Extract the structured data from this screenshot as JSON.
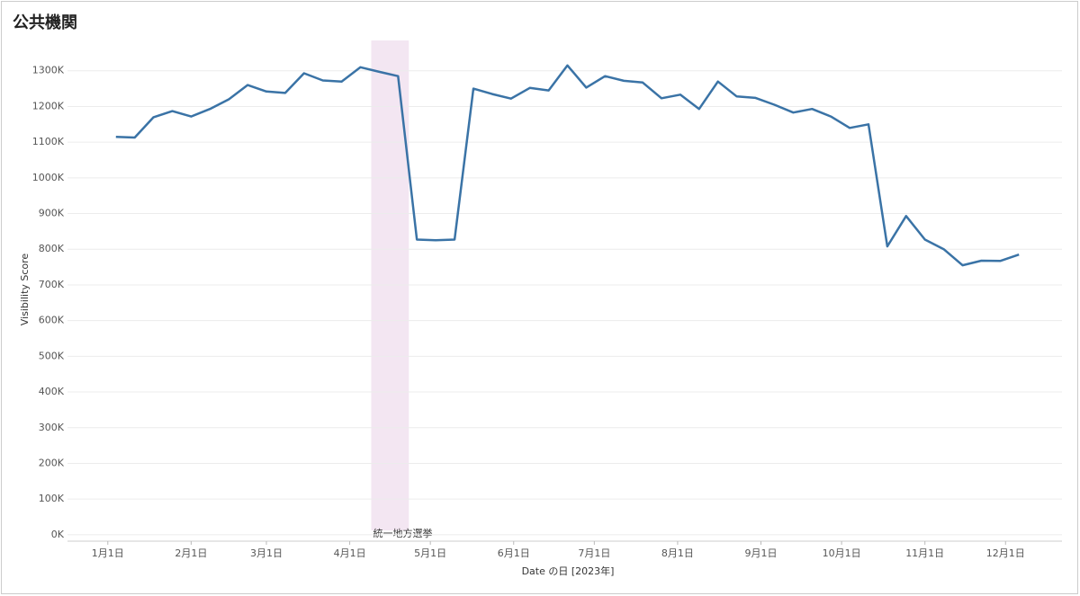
{
  "chart_data": {
    "type": "line",
    "title": "公共機関",
    "x_label": "Date の日 [2023年]",
    "y_label": "Visibility Score",
    "x": [
      "2023-01-04",
      "2023-01-11",
      "2023-01-18",
      "2023-01-25",
      "2023-02-01",
      "2023-02-08",
      "2023-02-15",
      "2023-02-22",
      "2023-03-01",
      "2023-03-08",
      "2023-03-15",
      "2023-03-22",
      "2023-03-29",
      "2023-04-05",
      "2023-04-12",
      "2023-04-19",
      "2023-04-26",
      "2023-05-03",
      "2023-05-10",
      "2023-05-17",
      "2023-05-24",
      "2023-05-31",
      "2023-06-07",
      "2023-06-14",
      "2023-06-21",
      "2023-06-28",
      "2023-07-05",
      "2023-07-12",
      "2023-07-19",
      "2023-07-26",
      "2023-08-02",
      "2023-08-09",
      "2023-08-16",
      "2023-08-23",
      "2023-08-30",
      "2023-09-06",
      "2023-09-13",
      "2023-09-20",
      "2023-09-27",
      "2023-10-04",
      "2023-10-11",
      "2023-10-18",
      "2023-10-25",
      "2023-11-01",
      "2023-11-08",
      "2023-11-15",
      "2023-11-22",
      "2023-11-29",
      "2023-12-06"
    ],
    "series": [
      {
        "name": "Visibility Score",
        "color": "#3a73a6",
        "values": [
          1115000,
          1113000,
          1170000,
          1187000,
          1172000,
          1193000,
          1220000,
          1260000,
          1242000,
          1238000,
          1293000,
          1273000,
          1270000,
          1310000,
          1297000,
          1285000,
          827000,
          825000,
          827000,
          1250000,
          1235000,
          1222000,
          1252000,
          1245000,
          1315000,
          1253000,
          1285000,
          1272000,
          1267000,
          1223000,
          1233000,
          1193000,
          1270000,
          1228000,
          1224000,
          1205000,
          1183000,
          1193000,
          1172000,
          1140000,
          1150000,
          808000,
          893000,
          827000,
          800000,
          755000,
          768000,
          767000,
          785000
        ]
      }
    ],
    "xlim": [
      "2022-12-17",
      "2023-12-22"
    ],
    "xticks": [
      {
        "value": "2023-01-01",
        "label": "1月1日"
      },
      {
        "value": "2023-02-01",
        "label": "2月1日"
      },
      {
        "value": "2023-03-01",
        "label": "3月1日"
      },
      {
        "value": "2023-04-01",
        "label": "4月1日"
      },
      {
        "value": "2023-05-01",
        "label": "5月1日"
      },
      {
        "value": "2023-06-01",
        "label": "6月1日"
      },
      {
        "value": "2023-07-01",
        "label": "7月1日"
      },
      {
        "value": "2023-08-01",
        "label": "8月1日"
      },
      {
        "value": "2023-09-01",
        "label": "9月1日"
      },
      {
        "value": "2023-10-01",
        "label": "10月1日"
      },
      {
        "value": "2023-11-01",
        "label": "11月1日"
      },
      {
        "value": "2023-12-01",
        "label": "12月1日"
      }
    ],
    "ylim": [
      -18000,
      1385000
    ],
    "yticks": [
      {
        "value": 0,
        "label": "0K"
      },
      {
        "value": 100000,
        "label": "100K"
      },
      {
        "value": 200000,
        "label": "200K"
      },
      {
        "value": 300000,
        "label": "300K"
      },
      {
        "value": 400000,
        "label": "400K"
      },
      {
        "value": 500000,
        "label": "500K"
      },
      {
        "value": 600000,
        "label": "600K"
      },
      {
        "value": 700000,
        "label": "700K"
      },
      {
        "value": 800000,
        "label": "800K"
      },
      {
        "value": 900000,
        "label": "900K"
      },
      {
        "value": 1000000,
        "label": "1000K"
      },
      {
        "value": 1100000,
        "label": "1100K"
      },
      {
        "value": 1200000,
        "label": "1200K"
      },
      {
        "value": 1300000,
        "label": "1300K"
      }
    ],
    "grid": true,
    "annotations": [
      {
        "label": "統一地方選挙",
        "x_start": "2023-04-09",
        "x_end": "2023-04-23",
        "color": "#f3e6f2"
      }
    ]
  }
}
